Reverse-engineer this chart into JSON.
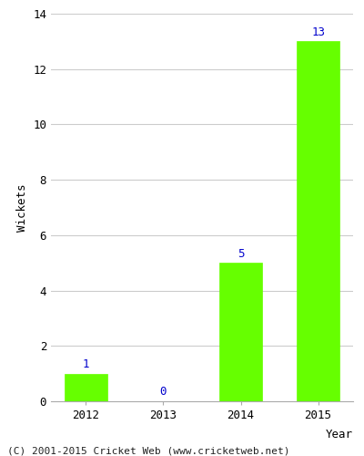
{
  "categories": [
    "2012",
    "2013",
    "2014",
    "2015"
  ],
  "values": [
    1,
    0,
    5,
    13
  ],
  "bar_color": "#66ff00",
  "bar_edgecolor": "#66ff00",
  "label_color": "#0000cc",
  "ylabel": "Wickets",
  "xlabel": "Year",
  "ylim": [
    0,
    14
  ],
  "yticks": [
    0,
    2,
    4,
    6,
    8,
    10,
    12,
    14
  ],
  "footer": "(C) 2001-2015 Cricket Web (www.cricketweb.net)",
  "background_color": "#ffffff",
  "plot_background_color": "#ffffff",
  "grid_color": "#cccccc",
  "label_fontsize": 9,
  "axis_fontsize": 9,
  "footer_fontsize": 8,
  "bar_width": 0.55
}
